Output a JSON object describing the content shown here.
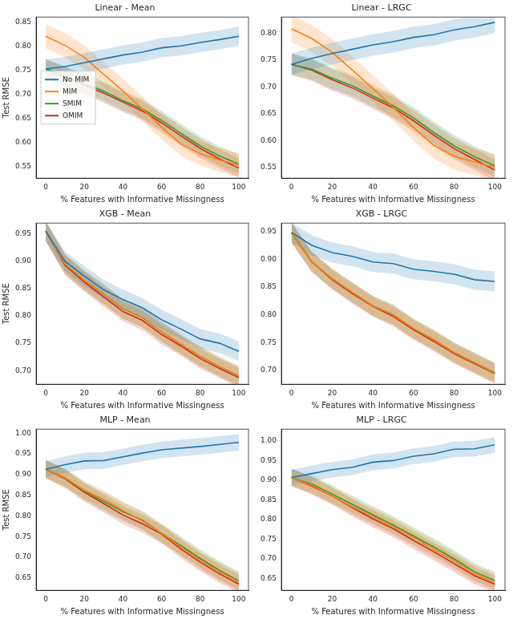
{
  "chart_data": [
    {
      "type": "line",
      "title": "Linear - Mean",
      "x_label": "% Features with Informative Missingness",
      "y_label": "Test RMSE",
      "x": [
        0,
        10,
        20,
        30,
        40,
        50,
        60,
        70,
        80,
        90,
        100
      ],
      "xlim": [
        -5,
        105
      ],
      "xticks": [
        0,
        20,
        40,
        60,
        80,
        100
      ],
      "ylim": [
        0.525,
        0.86
      ],
      "yticks": [
        0.55,
        {
          "value": 0.6,
          "label": "0.60"
        },
        0.65,
        {
          "value": 0.7,
          "label": "0.70"
        },
        0.75,
        {
          "value": 0.8,
          "label": "0.80"
        },
        0.85
      ],
      "grid": false,
      "legend": "center left",
      "series": [
        {
          "name": "No MIM",
          "color": "#1f77b4",
          "error": 0.02,
          "values": [
            0.752,
            0.757,
            0.765,
            0.773,
            0.781,
            0.787,
            0.796,
            0.8,
            0.807,
            0.813,
            0.82
          ]
        },
        {
          "name": "MIM",
          "color": "#ff7f0e",
          "error": 0.025,
          "values": [
            0.82,
            0.801,
            0.776,
            0.741,
            0.706,
            0.669,
            0.631,
            0.596,
            0.576,
            0.563,
            0.552
          ]
        },
        {
          "name": "SMIM",
          "color": "#2ca02c",
          "error": 0.02,
          "values": [
            0.752,
            0.738,
            0.721,
            0.706,
            0.686,
            0.669,
            0.645,
            0.618,
            0.592,
            0.571,
            0.554
          ]
        },
        {
          "name": "OMIM",
          "color": "#d62728",
          "error": 0.02,
          "values": [
            0.752,
            0.736,
            0.718,
            0.702,
            0.683,
            0.665,
            0.64,
            0.613,
            0.587,
            0.565,
            0.546
          ]
        }
      ]
    },
    {
      "type": "line",
      "title": "Linear - LRGC",
      "x_label": "% Features with Informative Missingness",
      "x": [
        0,
        10,
        20,
        30,
        40,
        50,
        60,
        70,
        80,
        90,
        100
      ],
      "xlim": [
        -5,
        105
      ],
      "xticks": [
        0,
        20,
        40,
        60,
        80,
        100
      ],
      "ylim": [
        0.53,
        0.83
      ],
      "yticks": [
        0.55,
        {
          "value": 0.6,
          "label": "0.60"
        },
        0.65,
        {
          "value": 0.7,
          "label": "0.70"
        },
        0.75,
        {
          "value": 0.8,
          "label": "0.80"
        }
      ],
      "grid": false,
      "series": [
        {
          "name": "No MIM",
          "color": "#1f77b4",
          "error": 0.02,
          "values": [
            0.742,
            0.753,
            0.762,
            0.77,
            0.778,
            0.784,
            0.792,
            0.797,
            0.806,
            0.812,
            0.82
          ]
        },
        {
          "name": "MIM",
          "color": "#ff7f0e",
          "error": 0.025,
          "values": [
            0.808,
            0.79,
            0.764,
            0.731,
            0.697,
            0.662,
            0.624,
            0.591,
            0.571,
            0.56,
            0.55
          ]
        },
        {
          "name": "SMIM",
          "color": "#2ca02c",
          "error": 0.02,
          "values": [
            0.742,
            0.733,
            0.716,
            0.702,
            0.683,
            0.665,
            0.642,
            0.615,
            0.59,
            0.57,
            0.553
          ]
        },
        {
          "name": "OMIM",
          "color": "#d62728",
          "error": 0.02,
          "values": [
            0.742,
            0.731,
            0.713,
            0.698,
            0.679,
            0.661,
            0.637,
            0.61,
            0.585,
            0.565,
            0.545
          ]
        }
      ]
    },
    {
      "type": "line",
      "title": "XGB - Mean",
      "x_label": "% Features with Informative Missingness",
      "y_label": "Test RMSE",
      "x": [
        0,
        10,
        20,
        30,
        40,
        50,
        60,
        70,
        80,
        90,
        100
      ],
      "xlim": [
        -5,
        105
      ],
      "xticks": [
        0,
        20,
        40,
        60,
        80,
        100
      ],
      "ylim": [
        0.675,
        0.97
      ],
      "yticks": [
        {
          "value": 0.7,
          "label": "0.70"
        },
        0.75,
        {
          "value": 0.8,
          "label": "0.80"
        },
        0.85,
        {
          "value": 0.9,
          "label": "0.90"
        },
        0.95
      ],
      "grid": false,
      "series": [
        {
          "name": "No MIM",
          "color": "#1f77b4",
          "error": 0.018,
          "values": [
            0.955,
            0.9,
            0.873,
            0.848,
            0.83,
            0.815,
            0.793,
            0.776,
            0.758,
            0.75,
            0.735
          ]
        },
        {
          "name": "MIM",
          "color": "#ff7f0e",
          "error": 0.018,
          "values": [
            0.955,
            0.895,
            0.865,
            0.84,
            0.813,
            0.797,
            0.771,
            0.748,
            0.726,
            0.707,
            0.69
          ]
        },
        {
          "name": "SMIM",
          "color": "#2ca02c",
          "error": 0.018,
          "values": [
            0.955,
            0.895,
            0.865,
            0.84,
            0.813,
            0.797,
            0.771,
            0.748,
            0.726,
            0.707,
            0.69
          ]
        },
        {
          "name": "OMIM",
          "color": "#d62728",
          "error": 0.018,
          "values": [
            0.955,
            0.893,
            0.862,
            0.835,
            0.808,
            0.792,
            0.766,
            0.745,
            0.722,
            0.704,
            0.687
          ]
        }
      ]
    },
    {
      "type": "line",
      "title": "XGB - LRGC",
      "x_label": "% Features with Informative Missingness",
      "x": [
        0,
        10,
        20,
        30,
        40,
        50,
        60,
        70,
        80,
        90,
        100
      ],
      "xlim": [
        -5,
        105
      ],
      "xticks": [
        0,
        20,
        40,
        60,
        80,
        100
      ],
      "ylim": [
        0.675,
        0.965
      ],
      "yticks": [
        {
          "value": 0.7,
          "label": "0.70"
        },
        0.75,
        {
          "value": 0.8,
          "label": "0.80"
        },
        0.85,
        {
          "value": 0.9,
          "label": "0.90"
        },
        0.95
      ],
      "grid": false,
      "series": [
        {
          "name": "No MIM",
          "color": "#1f77b4",
          "error": 0.018,
          "values": [
            0.948,
            0.925,
            0.912,
            0.905,
            0.895,
            0.892,
            0.882,
            0.878,
            0.873,
            0.863,
            0.86
          ]
        },
        {
          "name": "MIM",
          "color": "#ff7f0e",
          "error": 0.018,
          "values": [
            0.948,
            0.895,
            0.865,
            0.84,
            0.816,
            0.8,
            0.775,
            0.755,
            0.732,
            0.714,
            0.695
          ]
        },
        {
          "name": "SMIM",
          "color": "#2ca02c",
          "error": 0.018,
          "values": [
            0.948,
            0.895,
            0.865,
            0.84,
            0.816,
            0.8,
            0.775,
            0.755,
            0.732,
            0.714,
            0.696
          ]
        },
        {
          "name": "OMIM",
          "color": "#d62728",
          "error": 0.018,
          "values": [
            0.948,
            0.895,
            0.863,
            0.838,
            0.815,
            0.797,
            0.773,
            0.752,
            0.73,
            0.712,
            0.694
          ]
        }
      ]
    },
    {
      "type": "line",
      "title": "MLP - Mean",
      "x_label": "% Features with Informative Missingness",
      "y_label": "Test RMSE",
      "x": [
        0,
        10,
        20,
        30,
        40,
        50,
        60,
        70,
        80,
        90,
        100
      ],
      "xlim": [
        -5,
        105
      ],
      "xticks": [
        0,
        20,
        40,
        60,
        80,
        100
      ],
      "ylim": [
        0.62,
        1.01
      ],
      "yticks": [
        0.65,
        {
          "value": 0.7,
          "label": "0.70"
        },
        0.75,
        {
          "value": 0.8,
          "label": "0.80"
        },
        0.85,
        {
          "value": 0.9,
          "label": "0.90"
        },
        0.95,
        {
          "value": 1,
          "label": "1.00"
        }
      ],
      "grid": false,
      "series": [
        {
          "name": "No MIM",
          "color": "#1f77b4",
          "error": 0.02,
          "values": [
            0.913,
            0.924,
            0.933,
            0.934,
            0.943,
            0.952,
            0.96,
            0.964,
            0.968,
            0.973,
            0.978
          ]
        },
        {
          "name": "MIM",
          "color": "#ff7f0e",
          "error": 0.022,
          "values": [
            0.913,
            0.892,
            0.862,
            0.84,
            0.813,
            0.788,
            0.758,
            0.725,
            0.693,
            0.665,
            0.64
          ]
        },
        {
          "name": "SMIM",
          "color": "#2ca02c",
          "error": 0.022,
          "values": [
            0.913,
            0.892,
            0.86,
            0.835,
            0.81,
            0.79,
            0.758,
            0.728,
            0.697,
            0.668,
            0.643
          ]
        },
        {
          "name": "OMIM",
          "color": "#d62728",
          "error": 0.022,
          "values": [
            0.913,
            0.89,
            0.857,
            0.83,
            0.802,
            0.781,
            0.756,
            0.72,
            0.688,
            0.66,
            0.635
          ]
        }
      ]
    },
    {
      "type": "line",
      "title": "MLP - LRGC",
      "x_label": "% Features with Informative Missingness",
      "x": [
        0,
        10,
        20,
        30,
        40,
        50,
        60,
        70,
        80,
        90,
        100
      ],
      "xlim": [
        -5,
        105
      ],
      "xticks": [
        0,
        20,
        40,
        60,
        80,
        100
      ],
      "ylim": [
        0.62,
        1.03
      ],
      "yticks": [
        0.65,
        {
          "value": 0.7,
          "label": "0.70"
        },
        0.75,
        {
          "value": 0.8,
          "label": "0.80"
        },
        0.85,
        {
          "value": 0.9,
          "label": "0.90"
        },
        0.95,
        {
          "value": 1,
          "label": "1.00"
        }
      ],
      "grid": false,
      "series": [
        {
          "name": "No MIM",
          "color": "#1f77b4",
          "error": 0.02,
          "values": [
            0.907,
            0.917,
            0.927,
            0.933,
            0.946,
            0.95,
            0.961,
            0.967,
            0.979,
            0.98,
            0.99
          ]
        },
        {
          "name": "MIM",
          "color": "#ff7f0e",
          "error": 0.022,
          "values": [
            0.907,
            0.887,
            0.86,
            0.832,
            0.808,
            0.782,
            0.754,
            0.724,
            0.695,
            0.662,
            0.64
          ]
        },
        {
          "name": "SMIM",
          "color": "#2ca02c",
          "error": 0.022,
          "values": [
            0.907,
            0.89,
            0.865,
            0.838,
            0.812,
            0.786,
            0.758,
            0.73,
            0.7,
            0.667,
            0.645
          ]
        },
        {
          "name": "OMIM",
          "color": "#d62728",
          "error": 0.022,
          "values": [
            0.907,
            0.885,
            0.86,
            0.83,
            0.802,
            0.777,
            0.747,
            0.718,
            0.688,
            0.657,
            0.635
          ]
        }
      ]
    }
  ]
}
